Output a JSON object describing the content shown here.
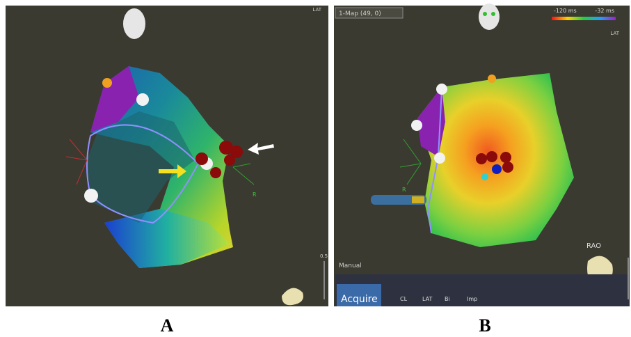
{
  "panels": [
    {
      "label": "A",
      "orientation_label": "LAT",
      "axis_label": "R",
      "slider_label": "0.5"
    },
    {
      "label": "B",
      "map_selector": "1-Map (49, 0)",
      "colorbar": {
        "min_label": "-120 ms",
        "max_label": "-32 ms",
        "title": "LAT"
      },
      "axis_label": "R",
      "view_label": "RAO",
      "mode_label": "Manual",
      "button": "Acquire",
      "fields": [
        "CL",
        "LAT",
        "Bi",
        "Imp"
      ]
    }
  ]
}
